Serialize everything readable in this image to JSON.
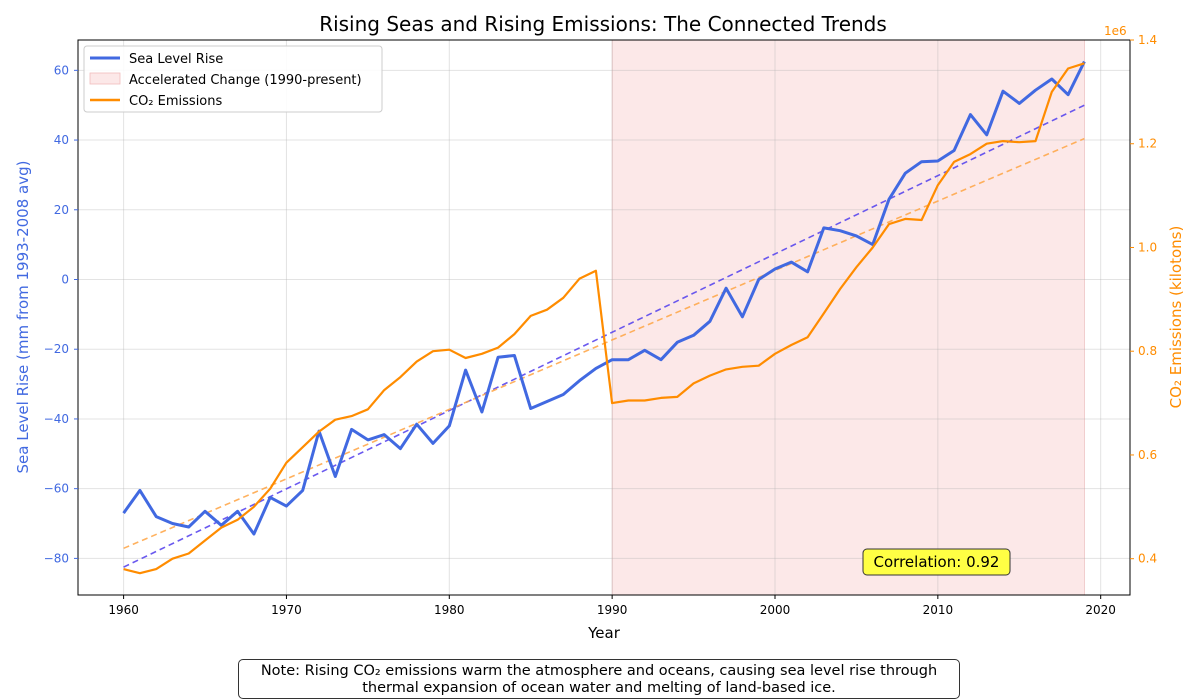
{
  "chart_data": {
    "type": "line",
    "title": "Rising Seas and Rising Emissions: The Connected Trends",
    "xlabel": "Year",
    "ylabel_left": "Sea Level Rise (mm from 1993-2008 avg)",
    "ylabel_right": "CO₂ Emissions (kilotons)",
    "right_axis_offset_label": "1e6",
    "xlim": [
      1957.2,
      2021.8
    ],
    "ylim_left": [
      -90.5,
      68.7
    ],
    "ylim_right": [
      0.33,
      1.4
    ],
    "x_ticks": [
      1960,
      1970,
      1980,
      1990,
      2000,
      2010,
      2020
    ],
    "y_ticks_left": [
      -80,
      -60,
      -40,
      -20,
      0,
      20,
      40,
      60
    ],
    "y_ticks_right": [
      0.4,
      0.6,
      0.8,
      1.0,
      1.2,
      1.4
    ],
    "grid": true,
    "legend_placement": "upper-left",
    "legend": [
      "Sea Level Rise",
      "Accelerated Change (1990-present)",
      "CO₂ Emissions"
    ],
    "shaded_span": {
      "label": "Accelerated Change (1990-present)",
      "start": 1990,
      "end": 2019,
      "color": "#f9d6d6"
    },
    "x": [
      1960,
      1961,
      1962,
      1963,
      1964,
      1965,
      1966,
      1967,
      1968,
      1969,
      1970,
      1971,
      1972,
      1973,
      1974,
      1975,
      1976,
      1977,
      1978,
      1979,
      1980,
      1981,
      1982,
      1983,
      1984,
      1985,
      1986,
      1987,
      1988,
      1989,
      1990,
      1991,
      1992,
      1993,
      1994,
      1995,
      1996,
      1997,
      1998,
      1999,
      2000,
      2001,
      2002,
      2003,
      2004,
      2005,
      2006,
      2007,
      2008,
      2009,
      2010,
      2011,
      2012,
      2013,
      2014,
      2015,
      2016,
      2017,
      2018,
      2019
    ],
    "series": [
      {
        "name": "Sea Level Rise",
        "axis": "left",
        "color": "#4169e1",
        "values": [
          -67,
          -60.5,
          -68,
          -70,
          -71,
          -66.5,
          -70.5,
          -66.5,
          -73,
          -62.5,
          -65,
          -60.5,
          -43.5,
          -56.5,
          -43,
          -46,
          -44.5,
          -48.5,
          -41.5,
          -47,
          -42,
          -26,
          -38,
          -22.3,
          -21.8,
          -37,
          -35,
          -33,
          -29,
          -25.5,
          -23,
          -23,
          -20.3,
          -23,
          -18,
          -16,
          -12,
          -2.5,
          -10.7,
          0,
          3,
          5,
          2.2,
          14.8,
          14,
          12.5,
          10,
          23,
          30.5,
          33.8,
          34,
          37,
          47.3,
          41.5,
          54,
          50.5,
          54.3,
          57.5,
          53,
          62.5
        ]
      },
      {
        "name": "CO₂ Emissions",
        "axis": "right",
        "color": "#ff8c00",
        "values": [
          0.38,
          0.372,
          0.38,
          0.4,
          0.41,
          0.435,
          0.46,
          0.475,
          0.5,
          0.535,
          0.585,
          0.615,
          0.645,
          0.668,
          0.675,
          0.688,
          0.725,
          0.75,
          0.78,
          0.8,
          0.803,
          0.787,
          0.795,
          0.807,
          0.833,
          0.868,
          0.88,
          0.903,
          0.94,
          0.955,
          0.7,
          0.705,
          0.705,
          0.71,
          0.712,
          0.738,
          0.753,
          0.765,
          0.77,
          0.772,
          0.795,
          0.812,
          0.827,
          0.873,
          0.92,
          0.962,
          1.0,
          1.045,
          1.055,
          1.053,
          1.12,
          1.165,
          1.18,
          1.2,
          1.205,
          1.203,
          1.205,
          1.3,
          1.345,
          1.355
        ]
      }
    ],
    "trendlines": [
      {
        "axis": "left",
        "color": "#5a48ee",
        "start": [
          1960,
          -82.5
        ],
        "end": [
          2019,
          50
        ]
      },
      {
        "axis": "right",
        "color": "#ffa94d",
        "start": [
          1960,
          0.42
        ],
        "end": [
          2019,
          1.21
        ]
      }
    ],
    "annotation": {
      "text": "Correlation: 0.92",
      "x": 2006.1,
      "y": -80.5,
      "background": "#ffff44"
    }
  },
  "note": {
    "line1": "Note: Rising CO₂ emissions warm the atmosphere and oceans, causing sea level rise through",
    "line2": "thermal expansion of ocean water and melting of land-based ice."
  }
}
